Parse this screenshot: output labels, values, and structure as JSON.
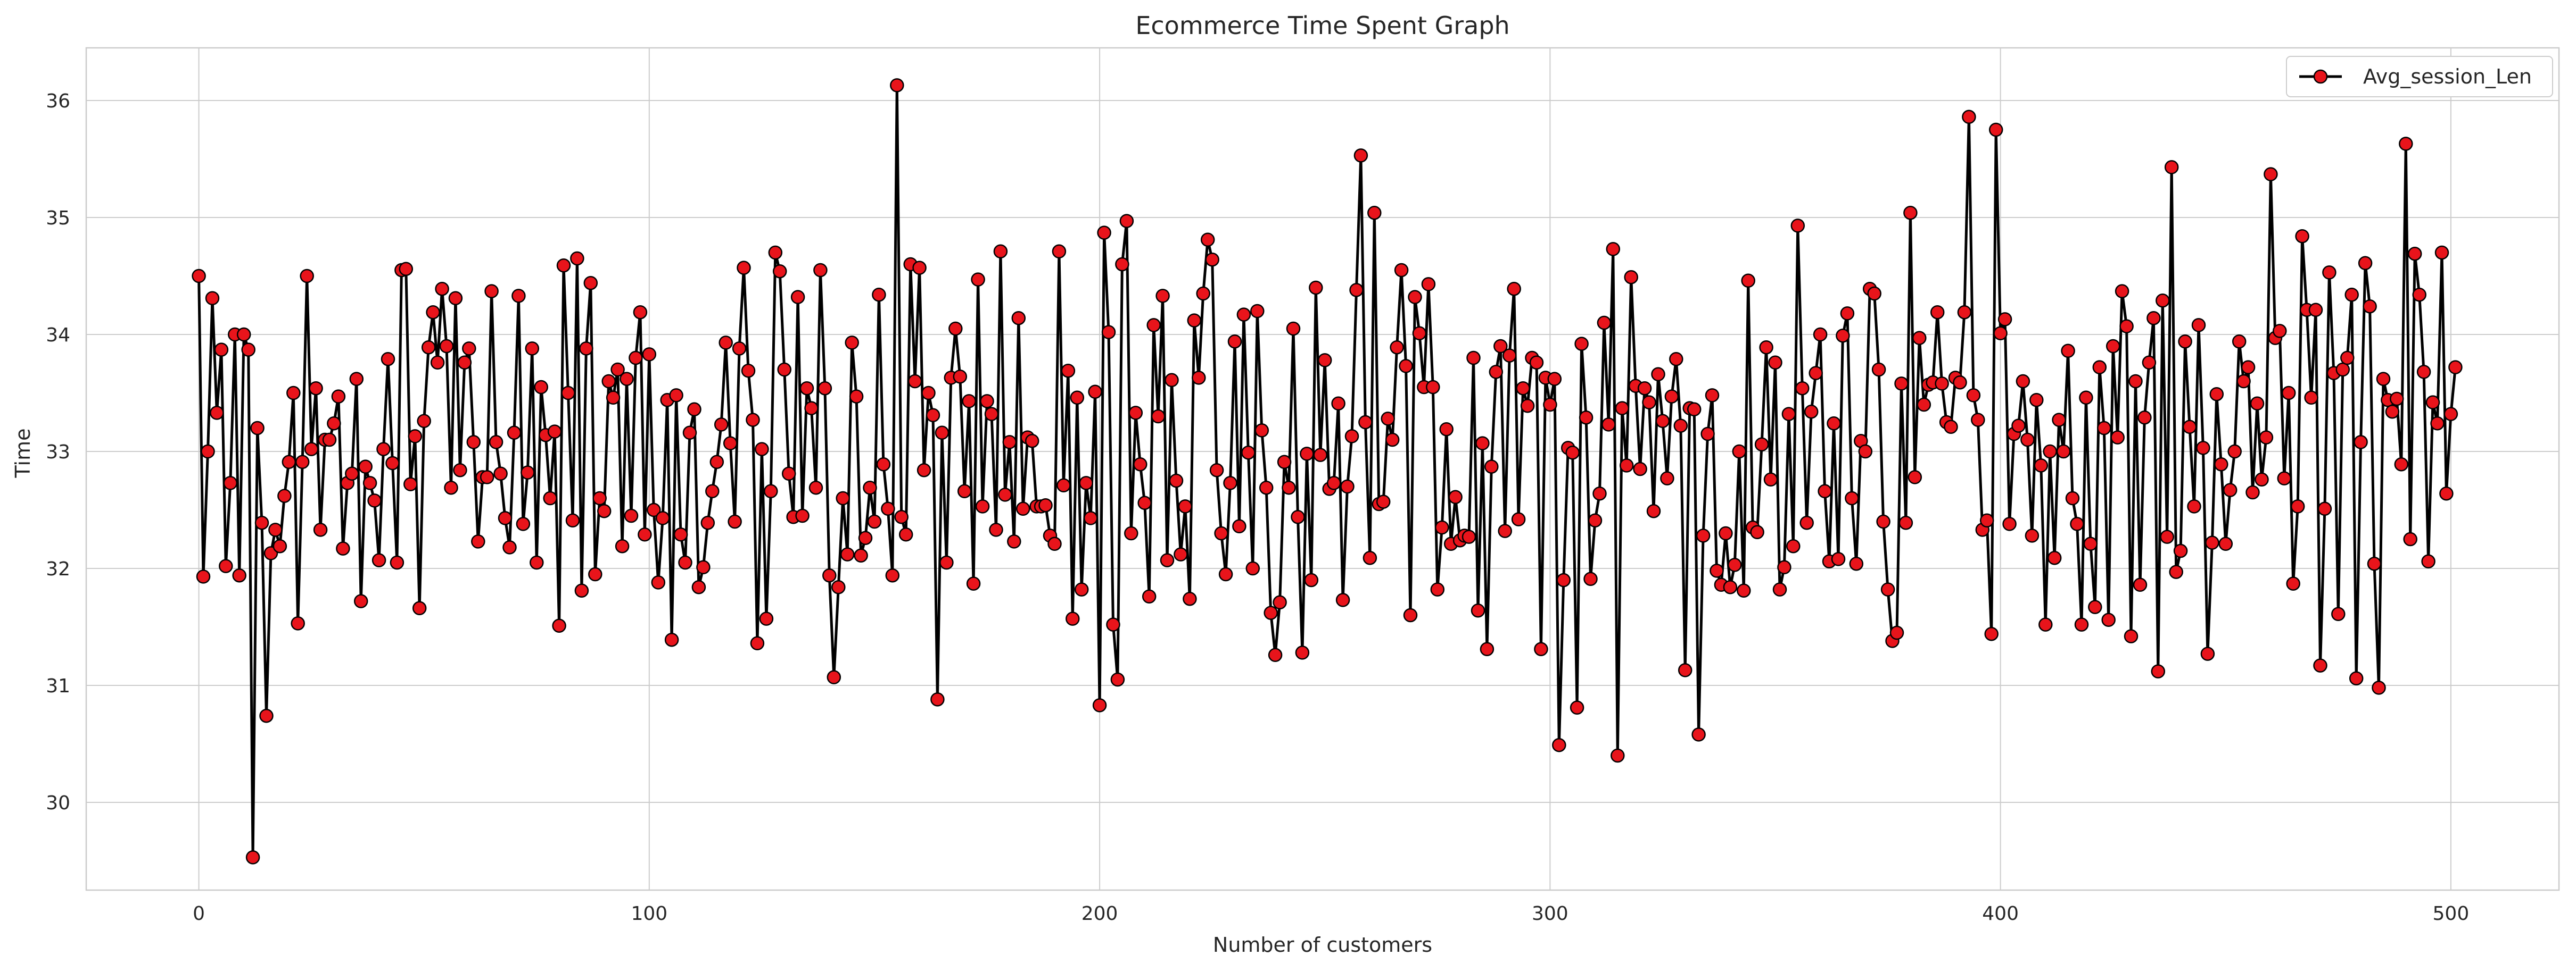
{
  "chart_data": {
    "type": "line",
    "title": "Ecommerce Time Spent Graph",
    "xlabel": "Number of customers",
    "ylabel": "Time",
    "xlim": [
      -25,
      524
    ],
    "ylim": [
      29.25,
      36.45
    ],
    "xticks": [
      0,
      100,
      200,
      300,
      400,
      500
    ],
    "yticks": [
      30,
      31,
      32,
      33,
      34,
      35,
      36
    ],
    "grid": true,
    "legend_position": "top-right",
    "line_color": "#000000",
    "marker_fill": "#e8141b",
    "marker_edge": "#000000",
    "series": [
      {
        "name": "Avg_session_Len",
        "x_start": 0,
        "x_step": 1,
        "values": [
          34.5,
          31.93,
          33.0,
          34.31,
          33.33,
          33.87,
          32.02,
          32.73,
          34.0,
          31.94,
          34.0,
          33.87,
          29.53,
          33.2,
          32.39,
          30.74,
          32.13,
          32.33,
          32.19,
          32.62,
          32.91,
          33.5,
          31.53,
          32.91,
          34.5,
          33.02,
          33.54,
          32.33,
          33.1,
          33.1,
          33.24,
          33.47,
          32.17,
          32.73,
          32.81,
          33.62,
          31.72,
          32.87,
          32.73,
          32.58,
          32.07,
          33.02,
          33.79,
          32.9,
          32.05,
          34.55,
          34.56,
          32.72,
          33.13,
          31.66,
          33.26,
          33.89,
          34.19,
          33.76,
          34.39,
          33.9,
          32.69,
          34.31,
          32.84,
          33.76,
          33.88,
          33.08,
          32.23,
          32.78,
          32.78,
          34.37,
          33.08,
          32.81,
          32.43,
          32.18,
          33.16,
          34.33,
          32.38,
          32.82,
          33.88,
          32.05,
          33.55,
          33.14,
          32.6,
          33.17,
          31.51,
          34.59,
          33.5,
          32.41,
          34.65,
          31.81,
          33.88,
          34.44,
          31.95,
          32.6,
          32.49,
          33.6,
          33.46,
          33.7,
          32.19,
          33.62,
          32.45,
          33.8,
          34.19,
          32.29,
          33.83,
          32.5,
          31.88,
          32.43,
          33.44,
          31.39,
          33.48,
          32.29,
          32.05,
          33.16,
          33.36,
          31.84,
          32.01,
          32.39,
          32.66,
          32.91,
          33.23,
          33.93,
          33.07,
          32.4,
          33.88,
          34.57,
          33.69,
          33.27,
          31.36,
          33.02,
          31.57,
          32.66,
          34.7,
          34.54,
          33.7,
          32.81,
          32.44,
          34.32,
          32.45,
          33.54,
          33.37,
          32.69,
          34.55,
          33.54,
          31.94,
          31.07,
          31.84,
          32.6,
          32.12,
          33.93,
          33.47,
          32.11,
          32.26,
          32.69,
          32.4,
          34.34,
          32.89,
          32.51,
          31.94,
          36.13,
          32.44,
          32.29,
          34.6,
          33.6,
          34.57,
          32.84,
          33.5,
          33.31,
          30.88,
          33.16,
          32.05,
          33.63,
          34.05,
          33.64,
          32.66,
          33.43,
          31.87,
          34.47,
          32.53,
          33.43,
          33.32,
          32.33,
          34.71,
          32.63,
          33.08,
          32.23,
          34.14,
          32.51,
          33.12,
          33.09,
          32.53,
          32.53,
          32.54,
          32.28,
          32.21,
          34.71,
          32.71,
          33.69,
          31.57,
          33.46,
          31.82,
          32.73,
          32.43,
          33.51,
          30.83,
          34.87,
          34.02,
          31.52,
          31.05,
          34.6,
          34.97,
          32.3,
          33.33,
          32.89,
          32.56,
          31.76,
          34.08,
          33.3,
          34.33,
          32.07,
          33.61,
          32.75,
          32.12,
          32.53,
          31.74,
          34.12,
          33.63,
          34.35,
          34.81,
          34.64,
          32.84,
          32.3,
          31.95,
          32.73,
          33.94,
          32.36,
          34.17,
          32.99,
          32.0,
          34.2,
          33.18,
          32.69,
          31.62,
          31.26,
          31.71,
          32.91,
          32.69,
          34.05,
          32.44,
          31.28,
          32.98,
          31.9,
          34.4,
          32.97,
          33.78,
          32.68,
          32.73,
          33.41,
          31.73,
          32.7,
          33.13,
          34.38,
          35.53,
          33.25,
          32.09,
          35.04,
          32.55,
          32.57,
          33.28,
          33.1,
          33.89,
          34.55,
          33.73,
          31.6,
          34.32,
          34.01,
          33.55,
          34.43,
          33.55,
          31.82,
          32.35,
          33.19,
          32.21,
          32.61,
          32.24,
          32.28,
          32.27,
          33.8,
          31.64,
          33.07,
          31.31,
          32.87,
          33.68,
          33.9,
          32.32,
          33.82,
          34.39,
          32.42,
          33.54,
          33.39,
          33.8,
          33.76,
          31.31,
          33.63,
          33.4,
          33.62,
          30.49,
          31.9,
          33.03,
          32.99,
          30.81,
          33.92,
          33.29,
          31.91,
          32.41,
          32.64,
          34.1,
          33.23,
          34.73,
          30.4,
          33.37,
          32.88,
          34.49,
          33.56,
          32.85,
          33.54,
          33.42,
          32.49,
          33.66,
          33.26,
          32.77,
          33.47,
          33.79,
          33.22,
          31.13,
          33.37,
          33.36,
          30.58,
          32.28,
          33.15,
          33.48,
          31.98,
          31.86,
          32.3,
          31.84,
          32.03,
          33.0,
          31.81,
          34.46,
          32.35,
          32.31,
          33.06,
          33.89,
          32.76,
          33.76,
          31.82,
          32.01,
          33.32,
          32.19,
          34.93,
          33.54,
          32.39,
          33.34,
          33.67,
          34.0,
          32.66,
          32.06,
          33.24,
          32.08,
          33.99,
          34.18,
          32.6,
          32.04,
          33.09,
          33.0,
          34.39,
          34.35,
          33.7,
          32.4,
          31.82,
          31.38,
          31.45,
          33.58,
          32.39,
          35.04,
          32.78,
          33.97,
          33.4,
          33.57,
          33.59,
          34.19,
          33.58,
          33.25,
          33.21,
          33.63,
          33.59,
          34.19,
          35.86,
          33.48,
          33.27,
          32.33,
          32.41,
          31.44,
          35.75,
          34.01,
          34.13,
          32.38,
          33.15,
          33.22,
          33.6,
          33.1,
          32.28,
          33.44,
          32.88,
          31.52,
          33.0,
          32.09,
          33.27,
          33.0,
          33.86,
          32.6,
          32.38,
          31.52,
          33.46,
          32.21,
          31.67,
          33.72,
          33.2,
          31.56,
          33.9,
          33.12,
          34.37,
          34.07,
          31.42,
          33.6,
          31.86,
          33.29,
          33.76,
          34.14,
          31.12,
          34.29,
          32.27,
          35.43,
          31.97,
          32.15,
          33.94,
          33.21,
          32.53,
          34.08,
          33.03,
          31.27,
          32.22,
          33.49,
          32.89,
          32.21,
          32.67,
          33.0,
          33.94,
          33.6,
          33.72,
          32.65,
          33.41,
          32.76,
          33.12,
          35.37,
          33.97,
          34.03,
          32.77,
          33.5,
          31.87,
          32.53,
          34.84,
          34.21,
          33.46,
          34.21,
          31.17,
          32.51,
          34.53,
          33.67,
          31.61,
          33.7,
          33.8,
          34.34,
          31.06,
          33.08,
          34.61,
          34.24,
          32.04,
          30.98,
          33.62,
          33.44,
          33.34,
          33.45,
          32.89,
          35.63,
          32.25,
          34.69,
          34.34,
          33.68,
          32.06,
          33.42,
          33.24,
          34.7,
          32.64,
          33.32,
          33.72
        ]
      }
    ]
  }
}
